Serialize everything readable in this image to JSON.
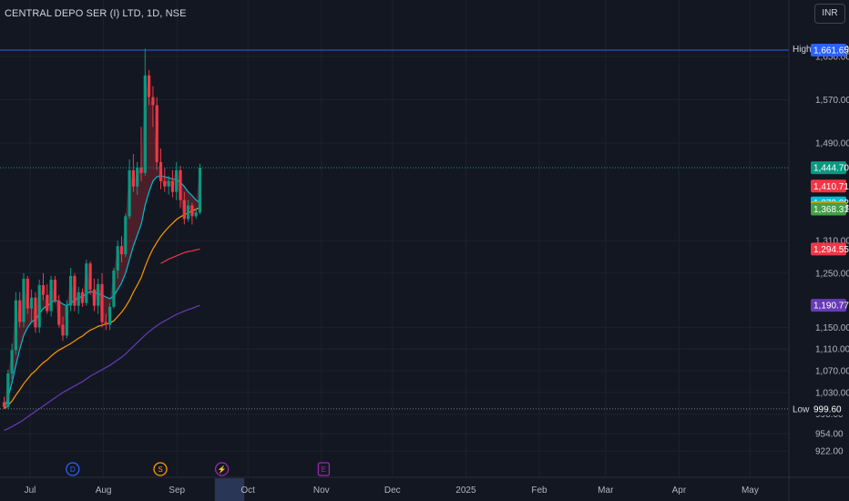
{
  "header": {
    "title": "CENTRAL DEPO SER (I) LTD, 1D, NSE"
  },
  "currency": "INR",
  "chart_data": {
    "type": "candlestick",
    "symbol": "CENTRAL DEPO SER (I) LTD",
    "interval": "1D",
    "exchange": "NSE",
    "y_ticks": [
      922.0,
      954.0,
      990.0,
      1030.0,
      1070.0,
      1110.0,
      1150.0,
      1250.0,
      1310.0,
      1490.0,
      1570.0,
      1650.0
    ],
    "y_tick_labels": [
      "922.00",
      "954.00",
      "990.00",
      "1,030.00",
      "1,070.00",
      "1,110.00",
      "1,150.00",
      "1,250.00",
      "1,310.00",
      "1,490.00",
      "1,570.00",
      "1,650.00"
    ],
    "x_labels": [
      {
        "label": "Jul",
        "day": 0
      },
      {
        "label": "Aug",
        "day": 31
      },
      {
        "label": "Sep",
        "day": 62
      },
      {
        "label": "Oct",
        "day": 92
      },
      {
        "label": "Nov",
        "day": 123
      },
      {
        "label": "Dec",
        "day": 153
      },
      {
        "label": "2025",
        "day": 184
      },
      {
        "label": "Feb",
        "day": 215
      },
      {
        "label": "Mar",
        "day": 243
      },
      {
        "label": "Apr",
        "day": 274
      },
      {
        "label": "May",
        "day": 304
      }
    ],
    "high": {
      "label": "High",
      "value": 1664.4,
      "value_label": "1,664.40"
    },
    "low": {
      "label": "Low",
      "value": 999.6,
      "value_label": "999.60"
    },
    "price_tags": [
      {
        "value": 1661.65,
        "label": "1,661.65",
        "color": "#2962ff"
      },
      {
        "value": 1444.7,
        "label": "1,444.70",
        "color": "#089981"
      },
      {
        "value": 1410.71,
        "label": "1,410.71",
        "color": "#f23645"
      },
      {
        "value": 1379.82,
        "label": "1,379.82",
        "color": "#00bcd4"
      },
      {
        "value": 1371.08,
        "label": "1,371.08",
        "color": "#ff9800"
      },
      {
        "value": 1368.31,
        "label": "1,368.31",
        "color": "#43a047"
      },
      {
        "value": 1294.55,
        "label": "1,294.55",
        "color": "#f23645"
      },
      {
        "value": 1190.77,
        "label": "1,190.77",
        "color": "#673ab7"
      }
    ],
    "candles": [
      [
        0,
        1012,
        1022,
        1000,
        1003
      ],
      [
        1,
        1003,
        1072,
        999.6,
        1065
      ],
      [
        2,
        1065,
        1120,
        1055,
        1108
      ],
      [
        3,
        1108,
        1215,
        1100,
        1200
      ],
      [
        4,
        1200,
        1215,
        1150,
        1160
      ],
      [
        5,
        1160,
        1250,
        1150,
        1240
      ],
      [
        6,
        1240,
        1245,
        1175,
        1185
      ],
      [
        7,
        1185,
        1220,
        1160,
        1205
      ],
      [
        8,
        1205,
        1215,
        1140,
        1150
      ],
      [
        9,
        1150,
        1238,
        1140,
        1228
      ],
      [
        10,
        1228,
        1250,
        1200,
        1210
      ],
      [
        11,
        1210,
        1230,
        1175,
        1180
      ],
      [
        12,
        1180,
        1245,
        1170,
        1238
      ],
      [
        13,
        1238,
        1245,
        1195,
        1200
      ],
      [
        14,
        1200,
        1210,
        1150,
        1155
      ],
      [
        15,
        1155,
        1170,
        1125,
        1135
      ],
      [
        16,
        1135,
        1200,
        1130,
        1190
      ],
      [
        17,
        1190,
        1260,
        1180,
        1245
      ],
      [
        18,
        1245,
        1250,
        1180,
        1190
      ],
      [
        19,
        1190,
        1225,
        1175,
        1215
      ],
      [
        20,
        1215,
        1222,
        1188,
        1195
      ],
      [
        21,
        1195,
        1275,
        1190,
        1268
      ],
      [
        22,
        1268,
        1272,
        1210,
        1220
      ],
      [
        23,
        1220,
        1240,
        1180,
        1190
      ],
      [
        24,
        1190,
        1240,
        1175,
        1230
      ],
      [
        25,
        1230,
        1250,
        1150,
        1160
      ],
      [
        26,
        1160,
        1175,
        1145,
        1155
      ],
      [
        27,
        1155,
        1195,
        1145,
        1188
      ],
      [
        28,
        1188,
        1260,
        1185,
        1255
      ],
      [
        29,
        1255,
        1310,
        1240,
        1300
      ],
      [
        30,
        1300,
        1318,
        1270,
        1285
      ],
      [
        31,
        1285,
        1360,
        1280,
        1355
      ],
      [
        32,
        1355,
        1460,
        1350,
        1440
      ],
      [
        33,
        1440,
        1470,
        1400,
        1410
      ],
      [
        34,
        1410,
        1455,
        1395,
        1445
      ],
      [
        35,
        1445,
        1520,
        1420,
        1435
      ],
      [
        36,
        1435,
        1664.4,
        1430,
        1615
      ],
      [
        37,
        1615,
        1625,
        1560,
        1575
      ],
      [
        38,
        1575,
        1595,
        1520,
        1560
      ],
      [
        39,
        1560,
        1575,
        1440,
        1455
      ],
      [
        40,
        1455,
        1480,
        1405,
        1420
      ],
      [
        41,
        1420,
        1445,
        1400,
        1410
      ],
      [
        42,
        1410,
        1430,
        1395,
        1420
      ],
      [
        43,
        1420,
        1440,
        1390,
        1400
      ],
      [
        44,
        1400,
        1455,
        1385,
        1440
      ],
      [
        45,
        1440,
        1448,
        1370,
        1385
      ],
      [
        46,
        1385,
        1400,
        1340,
        1350
      ],
      [
        47,
        1350,
        1385,
        1345,
        1375
      ],
      [
        48,
        1375,
        1380,
        1340,
        1355
      ],
      [
        49,
        1355,
        1370,
        1350,
        1362
      ],
      [
        50,
        1362,
        1452,
        1358,
        1444.7
      ]
    ],
    "series": [
      {
        "color": "#00bcd4",
        "values": [
          1000,
          1020,
          1048,
          1080,
          1110,
          1135,
          1150,
          1160,
          1165,
          1175,
          1185,
          1190,
          1195,
          1200,
          1198,
          1193,
          1190,
          1195,
          1200,
          1205,
          1207,
          1212,
          1216,
          1215,
          1212,
          1210,
          1206,
          1203,
          1208,
          1220,
          1232,
          1250,
          1275,
          1300,
          1320,
          1340,
          1375,
          1400,
          1420,
          1428,
          1430,
          1428,
          1426,
          1424,
          1422,
          1418,
          1410,
          1400,
          1393,
          1385,
          1380
        ]
      },
      {
        "color": "#ff9800",
        "values": [
          1000,
          1006,
          1014,
          1025,
          1035,
          1046,
          1055,
          1064,
          1070,
          1078,
          1085,
          1090,
          1097,
          1103,
          1108,
          1112,
          1116,
          1120,
          1125,
          1130,
          1134,
          1140,
          1145,
          1148,
          1152,
          1154,
          1156,
          1158,
          1162,
          1170,
          1178,
          1188,
          1200,
          1215,
          1228,
          1242,
          1262,
          1280,
          1295,
          1307,
          1318,
          1327,
          1335,
          1342,
          1349,
          1354,
          1358,
          1361,
          1365,
          1368,
          1371
        ]
      },
      {
        "color": "#f23645",
        "values": [
          null,
          null,
          null,
          null,
          null,
          null,
          null,
          null,
          null,
          null,
          null,
          null,
          null,
          null,
          null,
          null,
          null,
          null,
          null,
          null,
          null,
          null,
          null,
          null,
          null,
          null,
          null,
          null,
          null,
          null,
          null,
          null,
          null,
          null,
          null,
          null,
          null,
          null,
          null,
          null,
          1268,
          1272,
          1276,
          1279,
          1282,
          1285,
          1288,
          1290,
          1291,
          1293,
          1294.55
        ]
      },
      {
        "color": "#673ab7",
        "values": [
          960,
          963,
          967,
          971,
          975,
          980,
          985,
          990,
          995,
          1000,
          1005,
          1010,
          1015,
          1020,
          1025,
          1030,
          1034,
          1038,
          1042,
          1046,
          1050,
          1055,
          1060,
          1064,
          1068,
          1072,
          1076,
          1080,
          1085,
          1090,
          1095,
          1101,
          1108,
          1115,
          1122,
          1129,
          1136,
          1142,
          1148,
          1153,
          1158,
          1162,
          1166,
          1170,
          1174,
          1177,
          1180,
          1183,
          1185,
          1188,
          1190.77
        ]
      }
    ],
    "events": [
      {
        "letter": "D",
        "day": 18,
        "color": "#2962ff"
      },
      {
        "letter": "S",
        "day": 55,
        "color": "#ff9800"
      },
      {
        "letter": "⚡",
        "day": 81,
        "color": "#9c27b0"
      },
      {
        "letter": "E",
        "day": 124,
        "color": "#9c27b0"
      }
    ]
  }
}
